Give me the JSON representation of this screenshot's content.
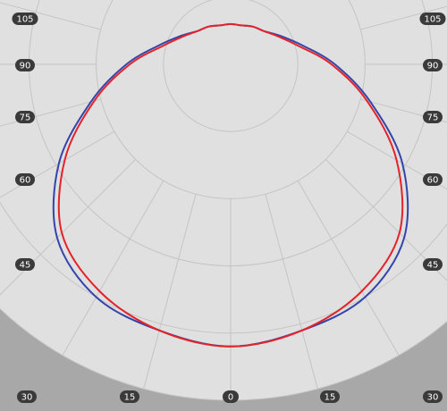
{
  "chart_data": {
    "type": "polar-luminous-intensity",
    "angle_labels_left": [
      "105",
      "90",
      "75",
      "60",
      "45",
      "30",
      "15"
    ],
    "angle_labels_right": [
      "105",
      "90",
      "75",
      "60",
      "45",
      "30",
      "15"
    ],
    "angle_label_bottom": "0",
    "angles_deg": [
      0,
      15,
      30,
      45,
      60,
      75,
      90,
      105
    ],
    "series": [
      {
        "color": "#3344aa",
        "points": [
          {
            "angle": 0,
            "r": 0.84
          },
          {
            "angle": 15,
            "r": 0.82
          },
          {
            "angle": 30,
            "r": 0.8
          },
          {
            "angle": 45,
            "r": 0.73
          },
          {
            "angle": 60,
            "r": 0.59
          },
          {
            "angle": 75,
            "r": 0.43
          },
          {
            "angle": 90,
            "r": 0.31
          },
          {
            "angle": 105,
            "r": 0.22
          },
          {
            "angle": 120,
            "r": 0.17
          },
          {
            "angle": 135,
            "r": 0.14
          },
          {
            "angle": 150,
            "r": 0.13
          },
          {
            "angle": 165,
            "r": 0.12
          },
          {
            "angle": 180,
            "r": 0.12
          }
        ]
      },
      {
        "color": "#e52229",
        "points": [
          {
            "angle": 0,
            "r": 0.84
          },
          {
            "angle": 15,
            "r": 0.82
          },
          {
            "angle": 30,
            "r": 0.78
          },
          {
            "angle": 45,
            "r": 0.71
          },
          {
            "angle": 60,
            "r": 0.57
          },
          {
            "angle": 75,
            "r": 0.42
          },
          {
            "angle": 90,
            "r": 0.3
          },
          {
            "angle": 105,
            "r": 0.21
          },
          {
            "angle": 120,
            "r": 0.165
          },
          {
            "angle": 135,
            "r": 0.14
          },
          {
            "angle": 150,
            "r": 0.13
          },
          {
            "angle": 165,
            "r": 0.12
          },
          {
            "angle": 180,
            "r": 0.12
          }
        ]
      }
    ],
    "colors": {
      "background": "#ffffff",
      "disc": "#e0e0e0",
      "outer_shade": "#a8a8a8",
      "grid": "#c4c4c4",
      "label_badge": "#3a3a3a",
      "label_text": "#ffffff"
    },
    "grid": true,
    "legend": "none"
  }
}
